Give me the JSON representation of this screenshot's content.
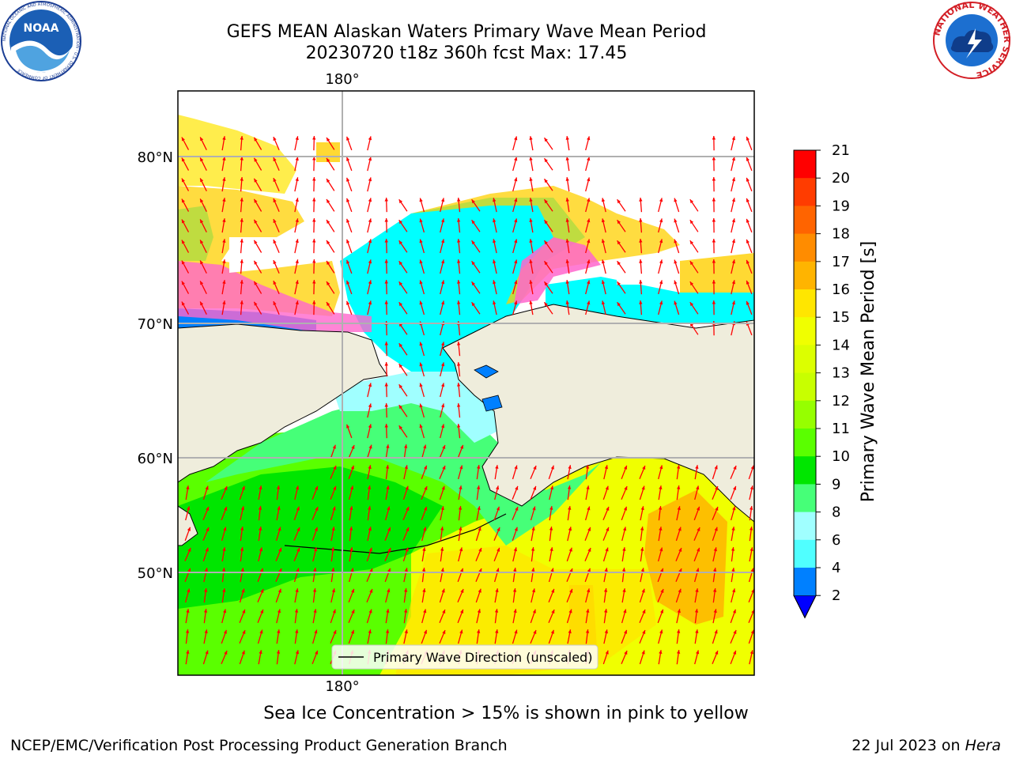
{
  "header": {
    "title_line1": "GEFS MEAN Alaskan Waters Primary Wave Mean Period",
    "title_line2": "20230720 t18z 360h fcst   Max: 17.45"
  },
  "logos": {
    "noaa": {
      "text": "NOAA",
      "ring": "NATIONAL OCEANIC AND ATMOSPHERIC ADMINISTRATION · U.S. DEPARTMENT OF COMMERCE"
    },
    "nws": {
      "ring": "NATIONAL WEATHER SERVICE"
    }
  },
  "map": {
    "lon_label_top": "180°",
    "lon_label_bottom": "180°",
    "lat_labels": [
      "80°N",
      "70°N",
      "60°N",
      "50°N"
    ],
    "legend_label": "Primary Wave Direction (unscaled)",
    "land_color": "#efeddc",
    "arrow_color": "#ff0000",
    "grid_color": "#b0b0b0"
  },
  "colorbar": {
    "label": "Primary Wave Mean Period [s]",
    "ticks": [
      "21",
      "20",
      "19",
      "18",
      "17",
      "16",
      "15",
      "14",
      "13",
      "12",
      "11",
      "10",
      "9",
      "8",
      "6",
      "4",
      "2"
    ],
    "colors": [
      "#ff0000",
      "#ff3c00",
      "#ff6400",
      "#ff8c00",
      "#ffb400",
      "#ffe600",
      "#f0ff00",
      "#dcff00",
      "#c8ff00",
      "#96ff00",
      "#5aff00",
      "#00e600",
      "#46ff78",
      "#a0ffff",
      "#50ffff",
      "#00ffff",
      "#0080ff"
    ],
    "extend_color": "#0000ff"
  },
  "notes": {
    "ice": "Sea Ice Concentration > 15% is shown in pink to yellow"
  },
  "footer": {
    "left": "NCEP/EMC/Verification Post Processing Product Generation Branch",
    "right_prefix": "22 Jul 2023 on ",
    "right_host": "Hera"
  }
}
